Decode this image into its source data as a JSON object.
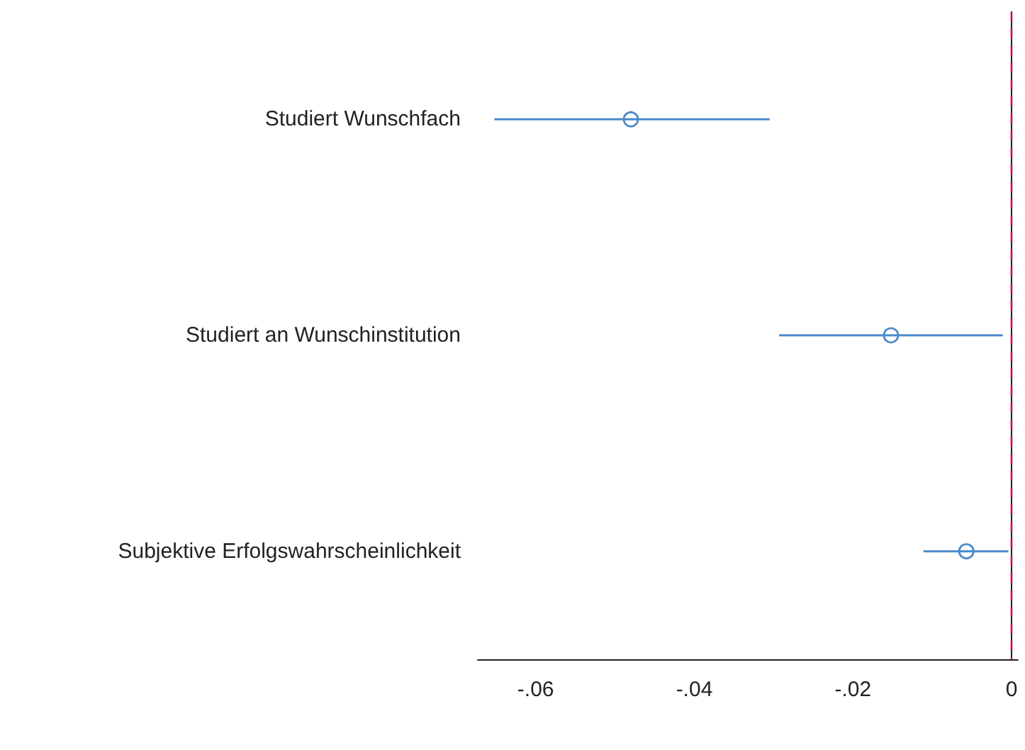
{
  "chart_data": {
    "type": "scatter",
    "orientation": "horizontal",
    "categories": [
      "Studiert Wunschfach",
      "Studiert an Wunschinstitution",
      "Subjektive Erfolgswahrscheinlichkeit"
    ],
    "series": [
      {
        "color": "#4a8ac9",
        "values": [
          -0.048,
          -0.0152,
          -0.0057
        ],
        "errors": [
          [
            -0.0652,
            -0.0305
          ],
          [
            -0.0293,
            -0.0011
          ],
          [
            -0.0111,
            -0.0004
          ]
        ]
      }
    ],
    "marker": "circle",
    "xlim": [
      -0.0673,
      0.0008
    ],
    "xticks": [
      {
        "value": -0.06,
        "label": "-.06"
      },
      {
        "value": -0.04,
        "label": "-.04"
      },
      {
        "value": -0.02,
        "label": "-.02"
      },
      {
        "value": 0,
        "label": "0"
      }
    ],
    "ref_lines": [
      {
        "axis": "x",
        "value": 0,
        "color": "#c0143c",
        "line_style": "dashed"
      }
    ],
    "grid": false
  }
}
